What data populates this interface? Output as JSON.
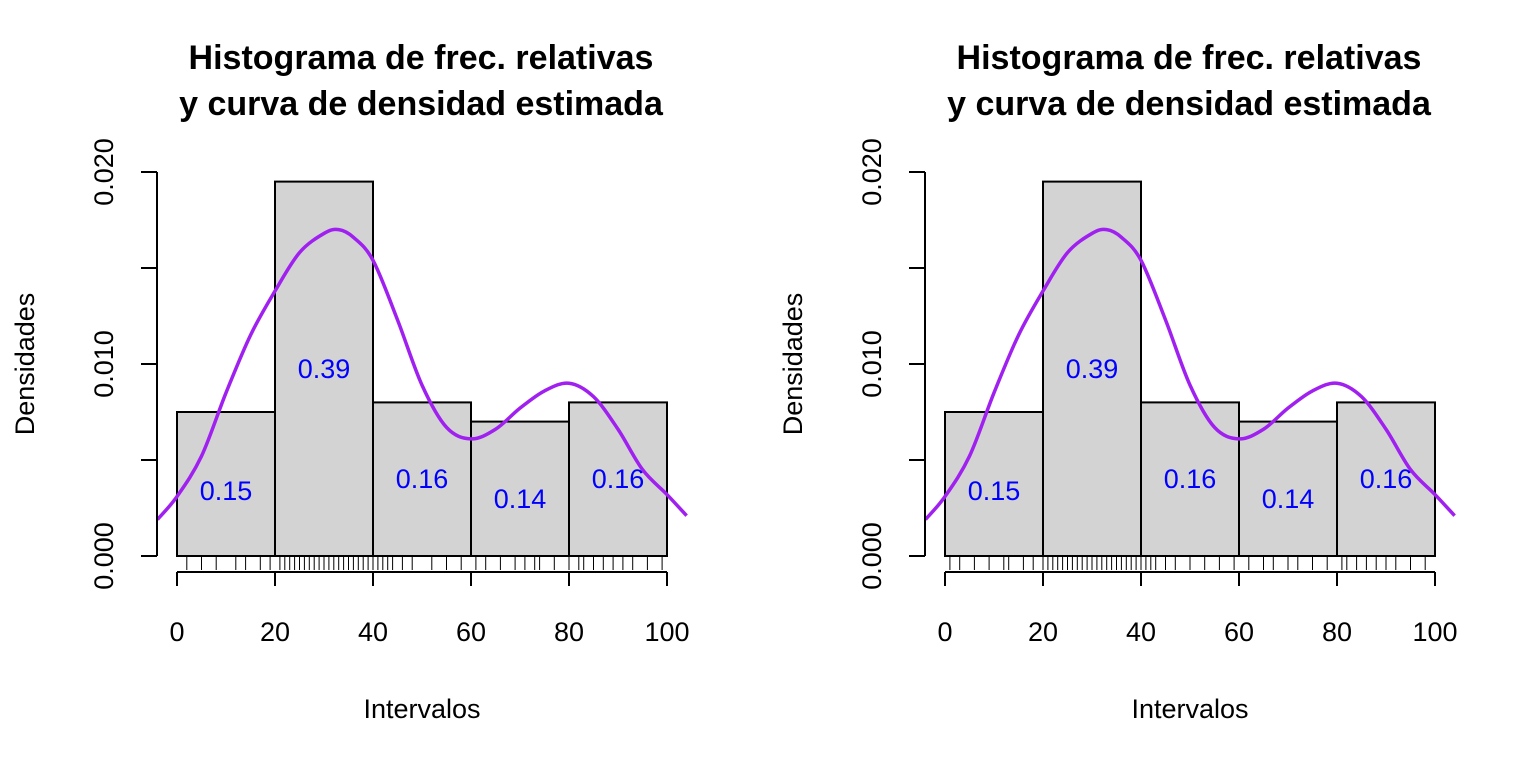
{
  "colors": {
    "bar_fill": "#d3d3d3",
    "bar_stroke": "#000000",
    "density_curve": "#a020f0",
    "bar_labels": "#0000ff"
  },
  "chart_data": [
    {
      "type": "bar",
      "subtype": "histogram-with-density-curve",
      "title_lines": [
        "Histograma de frec. relativas",
        "y curva de densidad estimada"
      ],
      "xlabel": "Intervalos",
      "ylabel": "Densidades",
      "bin_edges": [
        0,
        20,
        40,
        60,
        80,
        100
      ],
      "densities": [
        0.0075,
        0.0195,
        0.008,
        0.007,
        0.008
      ],
      "bar_labels": [
        "0.15",
        "0.39",
        "0.16",
        "0.14",
        "0.16"
      ],
      "x_ticks": [
        "0",
        "20",
        "40",
        "60",
        "80",
        "100"
      ],
      "y_ticks": [
        "0.000",
        "0.010",
        "0.020"
      ],
      "y_minor_ticks": [
        0.005,
        0.015
      ],
      "xlim": [
        0,
        100
      ],
      "ylim": [
        0,
        0.02
      ],
      "density_curve": [
        [
          -4,
          0.0019
        ],
        [
          0,
          0.0031
        ],
        [
          5,
          0.0052
        ],
        [
          10,
          0.0085
        ],
        [
          15,
          0.0115
        ],
        [
          20,
          0.0138
        ],
        [
          25,
          0.0158
        ],
        [
          30,
          0.0168
        ],
        [
          33,
          0.017
        ],
        [
          36,
          0.0166
        ],
        [
          40,
          0.0154
        ],
        [
          45,
          0.0123
        ],
        [
          50,
          0.0089
        ],
        [
          55,
          0.0067
        ],
        [
          60,
          0.0061
        ],
        [
          65,
          0.0066
        ],
        [
          70,
          0.0077
        ],
        [
          75,
          0.0086
        ],
        [
          80,
          0.009
        ],
        [
          85,
          0.0083
        ],
        [
          90,
          0.0066
        ],
        [
          95,
          0.0045
        ],
        [
          100,
          0.0032
        ],
        [
          104,
          0.0021
        ]
      ],
      "rug": [
        2,
        5,
        8,
        12,
        14,
        17,
        19,
        21,
        22,
        23,
        24,
        25,
        26,
        27,
        28,
        29,
        30,
        31,
        32,
        33,
        34,
        35,
        36,
        37,
        38,
        39,
        40,
        41,
        42,
        43,
        44,
        46,
        48,
        52,
        55,
        58,
        61,
        63,
        66,
        69,
        71,
        73,
        74,
        77,
        80,
        82,
        83,
        85,
        87,
        89,
        91,
        93,
        96,
        99
      ]
    },
    {
      "type": "bar",
      "subtype": "histogram-with-density-curve",
      "title_lines": [
        "Histograma de frec. relativas",
        "y curva de densidad estimada"
      ],
      "xlabel": "Intervalos",
      "ylabel": "Densidades",
      "bin_edges": [
        0,
        20,
        40,
        60,
        80,
        100
      ],
      "densities": [
        0.0075,
        0.0195,
        0.008,
        0.007,
        0.008
      ],
      "bar_labels": [
        "0.15",
        "0.39",
        "0.16",
        "0.14",
        "0.16"
      ],
      "x_ticks": [
        "0",
        "20",
        "40",
        "60",
        "80",
        "100"
      ],
      "y_ticks": [
        "0.000",
        "0.010",
        "0.020"
      ],
      "y_minor_ticks": [
        0.005,
        0.015
      ],
      "xlim": [
        0,
        100
      ],
      "ylim": [
        0,
        0.02
      ],
      "density_curve": [
        [
          -4,
          0.0019
        ],
        [
          0,
          0.0031
        ],
        [
          5,
          0.0052
        ],
        [
          10,
          0.0085
        ],
        [
          15,
          0.0115
        ],
        [
          20,
          0.0138
        ],
        [
          25,
          0.0158
        ],
        [
          30,
          0.0168
        ],
        [
          33,
          0.017
        ],
        [
          36,
          0.0166
        ],
        [
          40,
          0.0154
        ],
        [
          45,
          0.0123
        ],
        [
          50,
          0.0089
        ],
        [
          55,
          0.0067
        ],
        [
          60,
          0.0061
        ],
        [
          65,
          0.0066
        ],
        [
          70,
          0.0077
        ],
        [
          75,
          0.0086
        ],
        [
          80,
          0.009
        ],
        [
          85,
          0.0083
        ],
        [
          90,
          0.0066
        ],
        [
          95,
          0.0045
        ],
        [
          100,
          0.0032
        ],
        [
          104,
          0.0021
        ]
      ],
      "rug": [
        1,
        3,
        6,
        9,
        12,
        13,
        16,
        18,
        20,
        21,
        22,
        23,
        24,
        25,
        26,
        27,
        28,
        29,
        30,
        31,
        32,
        33,
        34,
        35,
        36,
        37,
        38,
        39,
        40,
        41,
        42,
        43,
        45,
        47,
        50,
        53,
        56,
        59,
        62,
        65,
        67,
        70,
        72,
        75,
        78,
        81,
        82,
        84,
        86,
        88,
        90,
        92,
        95,
        98
      ]
    }
  ]
}
